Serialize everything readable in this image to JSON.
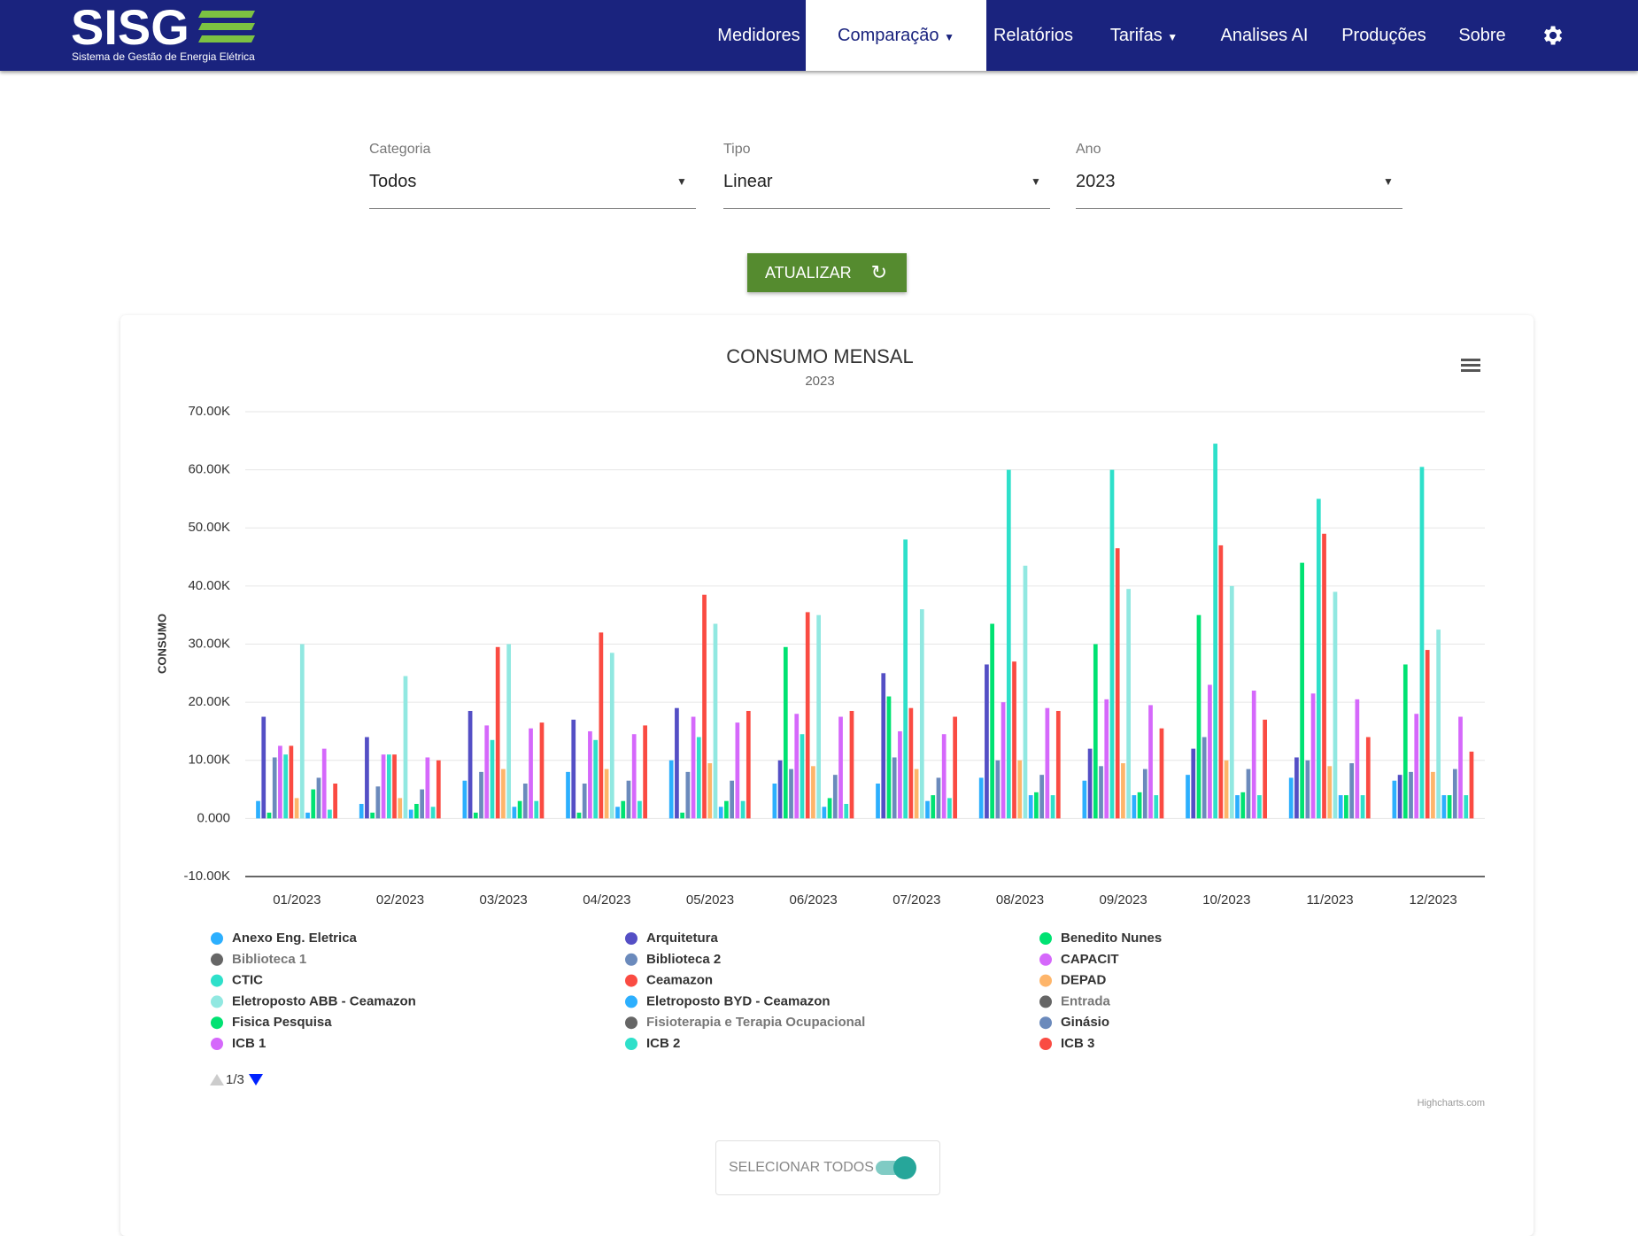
{
  "header": {
    "logo": "SISG",
    "logo_subtitle": "Sistema de Gestão de Energia Elétrica",
    "nav": [
      "Medidores",
      "Comparação",
      "Relatórios",
      "Tarifas",
      "Analises AI",
      "Produções",
      "Sobre"
    ]
  },
  "filters": [
    {
      "label": "Categoria",
      "value": "Todos"
    },
    {
      "label": "Tipo",
      "value": "Linear"
    },
    {
      "label": "Ano",
      "value": "2023"
    }
  ],
  "button": "ATUALIZAR",
  "chart_data": {
    "type": "bar",
    "title": "CONSUMO MENSAL",
    "subtitle": "2023",
    "y_label": "CONSUMO",
    "categories": [
      "01/2023",
      "02/2023",
      "03/2023",
      "04/2023",
      "05/2023",
      "06/2023",
      "07/2023",
      "08/2023",
      "09/2023",
      "10/2023",
      "11/2023",
      "12/2023"
    ],
    "ylim": [
      -10000,
      70000
    ],
    "yticks": [
      {
        "value": -10000,
        "label": "-10.00K"
      },
      {
        "value": 0,
        "label": "0.000"
      },
      {
        "value": 10000,
        "label": "10.00K"
      },
      {
        "value": 20000,
        "label": "20.00K"
      },
      {
        "value": 30000,
        "label": "30.00K"
      },
      {
        "value": 40000,
        "label": "40.00K"
      },
      {
        "value": 50000,
        "label": "50.00K"
      },
      {
        "value": 60000,
        "label": "60.00K"
      },
      {
        "value": 70000,
        "label": "70.00K"
      }
    ],
    "grid": true,
    "series": [
      {
        "name": "Anexo Eng. Eletrica",
        "color": "#2caffe",
        "values": [
          3000,
          2500,
          6500,
          8000,
          10000,
          6000,
          6000,
          7000,
          6500,
          7500,
          7000,
          6500
        ]
      },
      {
        "name": "Arquitetura",
        "color": "#544fc5",
        "values": [
          17500,
          14000,
          18500,
          17000,
          19000,
          10000,
          25000,
          26500,
          12000,
          12000,
          10500,
          7500
        ]
      },
      {
        "name": "Benedito Nunes",
        "color": "#00e272",
        "values": [
          1000,
          1000,
          1000,
          1000,
          1000,
          29500,
          21000,
          33500,
          30000,
          35000,
          44000,
          26500
        ]
      },
      {
        "name": "Biblioteca 1",
        "color": "#666666",
        "visible": false
      },
      {
        "name": "Biblioteca 2",
        "color": "#6b8abc",
        "values": [
          10500,
          5500,
          8000,
          6000,
          8000,
          8500,
          10500,
          10000,
          9000,
          14000,
          10000,
          8000
        ]
      },
      {
        "name": "CAPACIT",
        "color": "#d568fb",
        "values": [
          12500,
          11000,
          16000,
          15000,
          17500,
          18000,
          15000,
          20000,
          20500,
          23000,
          21500,
          18000
        ]
      },
      {
        "name": "CTIC",
        "color": "#2ee0ca",
        "values": [
          11000,
          11000,
          13500,
          13500,
          14000,
          14500,
          48000,
          60000,
          60000,
          64500,
          55000,
          60500
        ]
      },
      {
        "name": "Ceamazon",
        "color": "#fa4b42",
        "values": [
          12500,
          11000,
          29500,
          32000,
          38500,
          35500,
          19000,
          27000,
          46500,
          47000,
          49000,
          29000
        ]
      },
      {
        "name": "DEPAD",
        "color": "#feb56a",
        "values": [
          3500,
          3500,
          8500,
          8500,
          9500,
          9000,
          8500,
          10000,
          9500,
          10000,
          9000,
          8000
        ]
      },
      {
        "name": "Eletroposto ABB - Ceamazon",
        "color": "#91e8e1",
        "values": [
          30000,
          24500,
          30000,
          28500,
          33500,
          35000,
          36000,
          43500,
          39500,
          40000,
          39000,
          32500
        ]
      },
      {
        "name": "Eletroposto BYD - Ceamazon",
        "color": "#2caffe",
        "values": [
          1000,
          1500,
          2000,
          2000,
          2000,
          2000,
          3000,
          4000,
          4000,
          4000,
          4000,
          4000
        ]
      },
      {
        "name": "Entrada",
        "color": "#666666",
        "visible": false
      },
      {
        "name": "Fisica Pesquisa",
        "color": "#00e272",
        "values": [
          5000,
          2500,
          3000,
          3000,
          3000,
          3500,
          4000,
          4500,
          4500,
          4500,
          4000,
          4000
        ]
      },
      {
        "name": "Fisioterapia e Terapia Ocupacional",
        "color": "#666666",
        "visible": false
      },
      {
        "name": "Ginásio",
        "color": "#6b8abc",
        "values": [
          7000,
          5000,
          6000,
          6500,
          6500,
          7500,
          7000,
          7500,
          8500,
          8500,
          9500,
          8500
        ]
      },
      {
        "name": "ICB 1",
        "color": "#d568fb",
        "values": [
          12000,
          10500,
          15500,
          14500,
          16500,
          17500,
          14500,
          19000,
          19500,
          22000,
          20500,
          17500
        ]
      },
      {
        "name": "ICB 2",
        "color": "#2ee0ca",
        "values": [
          1500,
          2000,
          3000,
          3000,
          3000,
          2500,
          3500,
          4000,
          4000,
          4000,
          4000,
          4000
        ]
      },
      {
        "name": "ICB 3",
        "color": "#fa4b42",
        "values": [
          6000,
          10000,
          16500,
          16000,
          18500,
          18500,
          17500,
          18500,
          15500,
          17000,
          14000,
          11500
        ]
      }
    ],
    "legend_page": "1/3",
    "credits": "Highcharts.com"
  },
  "select_all": {
    "label": "SELECIONAR TODOS",
    "checked": true
  }
}
